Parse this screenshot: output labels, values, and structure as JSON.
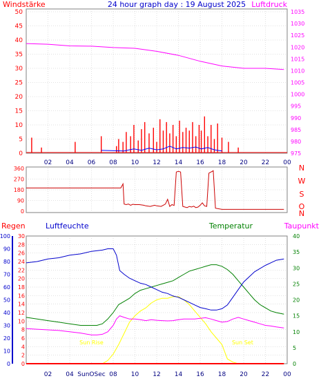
{
  "title": "24 hour graph day : 19 August 2025",
  "colors": {
    "wind": "#ff0000",
    "gust": "#ff0000",
    "avgwind": "#0000ff",
    "pressure": "#ff00ff",
    "direction": "#cc0000",
    "humidity": "#0000cc",
    "temperature": "#008000",
    "dewpoint": "#ff00ff",
    "rain": "#ff0000",
    "sun": "#ffff00",
    "grid": "#c0c0c0"
  },
  "chart_data": [
    {
      "type": "line",
      "label_left": "Windstärke",
      "label_right": "Luftdruck",
      "x_ticks": [
        "02",
        "04",
        "06",
        "08",
        "10",
        "12",
        "14",
        "16",
        "18",
        "20",
        "22",
        "00"
      ],
      "y_left_ticks": [
        "0",
        "5",
        "10",
        "15",
        "20",
        "25",
        "30",
        "35",
        "40",
        "45",
        "50"
      ],
      "y_right_ticks": [
        "975",
        "980",
        "985",
        "990",
        "995",
        "1000",
        "1005",
        "1010",
        "1015",
        "1020",
        "1025",
        "1030",
        "1035"
      ],
      "ylim_left": [
        0,
        50
      ],
      "ylim_right": [
        975,
        1035
      ],
      "series": [
        {
          "key": "pressure",
          "axis": "right",
          "x": [
            0,
            2,
            4,
            6,
            8,
            10,
            12,
            14,
            16,
            18,
            20,
            22,
            23.7
          ],
          "values": [
            1021.5,
            1021.2,
            1020.5,
            1020.4,
            1019.8,
            1019.5,
            1018.2,
            1016.5,
            1014.0,
            1012.0,
            1011.0,
            1011.0,
            1010.5
          ]
        },
        {
          "key": "gust",
          "axis": "left",
          "x": [
            0.5,
            1.4,
            4.5,
            6.9,
            8.3,
            8.5,
            8.9,
            9.2,
            9.6,
            9.9,
            10.3,
            10.6,
            10.9,
            11.3,
            11.7,
            12.0,
            12.3,
            12.6,
            12.9,
            13.2,
            13.5,
            13.8,
            14.1,
            14.4,
            14.7,
            15.0,
            15.3,
            15.6,
            15.9,
            16.1,
            16.4,
            16.7,
            17.0,
            17.3,
            17.6,
            18.0,
            18.6,
            19.5
          ],
          "values": [
            5.5,
            2.0,
            4.0,
            6.0,
            2.5,
            5.0,
            4.0,
            7.5,
            6.0,
            10.0,
            4.5,
            8.5,
            11.0,
            7.0,
            9.0,
            4.0,
            12.0,
            8.0,
            11.0,
            7.0,
            10.0,
            6.0,
            11.5,
            7.5,
            9.0,
            8.0,
            11.0,
            6.0,
            10.0,
            8.0,
            13.0,
            6.0,
            10.0,
            5.0,
            10.5,
            5.5,
            4.0,
            2.0
          ]
        },
        {
          "key": "avgwind",
          "axis": "left",
          "x": [
            6.9,
            9.0,
            9.9,
            10.6,
            11.3,
            12.0,
            12.6,
            13.2,
            13.8,
            14.4,
            15.0,
            15.6,
            16.1,
            16.7,
            17.3,
            18.0
          ],
          "values": [
            1.0,
            0.8,
            1.5,
            1.0,
            1.8,
            1.2,
            1.5,
            2.5,
            1.5,
            2.0,
            1.8,
            2.2,
            1.5,
            2.0,
            1.2,
            0.8
          ]
        }
      ]
    },
    {
      "type": "line",
      "x_ticks": [
        "02",
        "04",
        "06",
        "08",
        "10",
        "12",
        "14",
        "16",
        "18",
        "20",
        "22",
        "00"
      ],
      "y_ticks": [
        "0",
        "90",
        "180",
        "270",
        "360"
      ],
      "y_right_labels": [
        "N",
        "W",
        "S",
        "O",
        "N"
      ],
      "ylim": [
        0,
        360
      ],
      "series": [
        {
          "key": "direction",
          "x": [
            0,
            8.6,
            8.7,
            8.9,
            9.0,
            9.2,
            9.4,
            9.6,
            9.8,
            10.0,
            10.4,
            10.8,
            11.0,
            11.4,
            11.8,
            12.0,
            12.4,
            12.6,
            12.8,
            13.0,
            13.2,
            13.4,
            13.6,
            13.8,
            14.0,
            14.2,
            14.4,
            14.6,
            14.8,
            15.0,
            15.2,
            15.4,
            15.6,
            15.8,
            16.0,
            16.2,
            16.4,
            16.6,
            16.8,
            17.0,
            17.2,
            17.4,
            18.0,
            20.0,
            23.7
          ],
          "values": [
            195,
            195,
            195,
            230,
            60,
            55,
            60,
            50,
            58,
            55,
            55,
            50,
            45,
            40,
            50,
            45,
            40,
            50,
            60,
            100,
            40,
            55,
            48,
            330,
            335,
            330,
            40,
            35,
            30,
            40,
            35,
            42,
            30,
            35,
            50,
            70,
            45,
            40,
            320,
            330,
            340,
            25,
            15,
            15,
            15
          ]
        }
      ]
    },
    {
      "type": "line",
      "labels": {
        "rain": "Regen",
        "humidity": "Luftfeuchte",
        "temperature": "Temperatur",
        "dewpoint": "Taupunkt"
      },
      "x_ticks": [
        "02",
        "04",
        "06",
        "08",
        "10",
        "12",
        "14",
        "16",
        "18",
        "20",
        "22",
        "00"
      ],
      "sun_rise_label": "Sun Rise",
      "sun_set_label": "Sun Set",
      "sun_marker_label": "SunOSec",
      "y_humidity_ticks": [
        "0",
        "10",
        "20",
        "30",
        "40",
        "50",
        "60",
        "70",
        "80",
        "90",
        "100"
      ],
      "y_rain_ticks": [
        "0",
        "2",
        "4",
        "6",
        "8",
        "10",
        "12",
        "14",
        "16",
        "18",
        "20",
        "22",
        "24",
        "26",
        "28",
        "30"
      ],
      "y_temp_ticks": [
        "0",
        "5",
        "10",
        "15",
        "20",
        "25",
        "30",
        "35",
        "40"
      ],
      "ylim_humidity": [
        0,
        100
      ],
      "ylim_rain": [
        0,
        30
      ],
      "ylim_temp": [
        0,
        40
      ],
      "series": [
        {
          "key": "humidity",
          "axis": "humidity",
          "x": [
            0,
            1,
            2,
            3,
            4,
            5,
            6,
            7,
            7.5,
            8.0,
            8.3,
            8.6,
            9.0,
            9.5,
            10,
            10.5,
            11,
            11.5,
            12,
            12.5,
            13,
            13.5,
            14,
            14.5,
            15,
            15.5,
            16,
            16.5,
            17,
            17.5,
            18,
            18.5,
            19,
            19.5,
            20,
            21,
            22,
            23,
            23.7
          ],
          "values": [
            79,
            80,
            82,
            83,
            85,
            86,
            88,
            89,
            90,
            90,
            85,
            73,
            70,
            67,
            65,
            63,
            62,
            60,
            58,
            56,
            55,
            53,
            52,
            50,
            48,
            46,
            44,
            43,
            42,
            42,
            43,
            46,
            52,
            58,
            64,
            72,
            77,
            81,
            82
          ]
        },
        {
          "key": "temperature",
          "axis": "temp",
          "x": [
            0,
            1,
            2,
            3,
            4,
            5,
            6,
            6.5,
            7,
            7.5,
            8,
            8.5,
            9,
            9.5,
            10,
            10.5,
            11,
            11.5,
            12,
            12.5,
            13,
            13.5,
            14,
            14.5,
            15,
            15.5,
            16,
            16.5,
            17,
            17.5,
            18,
            18.5,
            19,
            19.5,
            20,
            20.5,
            21,
            21.5,
            22,
            22.5,
            23,
            23.7
          ],
          "values": [
            14.5,
            14,
            13.5,
            13,
            12.5,
            12,
            12,
            12,
            12.5,
            14,
            16,
            18.5,
            19.5,
            20.5,
            22,
            23,
            23.5,
            24,
            24.5,
            25,
            25.5,
            26,
            27,
            28,
            29,
            29.5,
            30,
            30.5,
            31,
            31,
            30.5,
            29.5,
            28,
            26,
            24,
            22,
            20,
            18.5,
            17.5,
            16.5,
            16,
            15.5
          ]
        },
        {
          "key": "dewpoint",
          "axis": "temp",
          "x": [
            0,
            1,
            2,
            3,
            4,
            5,
            6,
            6.5,
            7,
            7.5,
            8,
            8.3,
            8.6,
            9,
            9.5,
            10,
            10.5,
            11,
            11.5,
            12,
            12.5,
            13,
            13.5,
            14,
            14.5,
            15,
            15.5,
            16,
            16.5,
            17,
            17.5,
            18,
            18.5,
            19,
            19.5,
            20,
            20.5,
            21,
            21.5,
            22,
            22.5,
            23,
            23.7
          ],
          "values": [
            11,
            10.8,
            10.6,
            10.4,
            10,
            9.6,
            9,
            9,
            9.2,
            10,
            12,
            14,
            15,
            14.5,
            14,
            14,
            13.8,
            13.5,
            13.8,
            13.6,
            13.5,
            13.4,
            13.5,
            13.8,
            14,
            14,
            14,
            14.2,
            14.4,
            14,
            13.5,
            13,
            13.2,
            14,
            14.5,
            14,
            13.5,
            13,
            12.5,
            12,
            11.8,
            11.5,
            11.2
          ]
        },
        {
          "key": "sun",
          "axis": "temp",
          "x": [
            0,
            6.0,
            6.5,
            7.0,
            7.5,
            8.0,
            8.5,
            9.0,
            9.5,
            10.0,
            10.5,
            11.0,
            11.5,
            12.0,
            12.5,
            13.0,
            13.5,
            14.0,
            14.5,
            15.0,
            15.5,
            16.0,
            16.5,
            17.0,
            17.5,
            18.0,
            18.5,
            19.0,
            19.5,
            20.0,
            20.5,
            23.7
          ],
          "values": [
            0,
            0,
            0,
            0,
            1,
            3,
            6,
            9.5,
            13,
            15,
            16.5,
            17.5,
            19,
            20,
            20.5,
            20.5,
            21,
            21,
            20,
            18.5,
            16.5,
            14.5,
            12.5,
            10,
            8,
            6,
            1.5,
            0.5,
            0,
            0,
            0,
            0
          ]
        },
        {
          "key": "rain",
          "axis": "rain",
          "x": [
            0,
            23.7
          ],
          "values": [
            0,
            0
          ]
        }
      ]
    }
  ]
}
